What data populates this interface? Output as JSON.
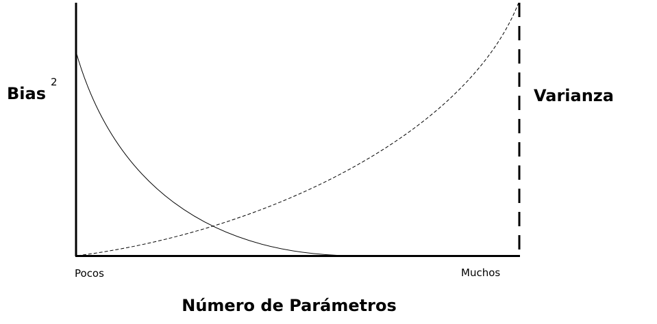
{
  "left_axis": {
    "label": "Bias",
    "superscript": "2"
  },
  "right_axis": {
    "label": "Varianza"
  },
  "x_axis": {
    "title": "Número de Parámetros",
    "start_label": "Pocos",
    "end_label": "Muchos"
  },
  "curves": [
    {
      "name": "bias-squared",
      "style": "solid",
      "trend": "decreasing"
    },
    {
      "name": "variance",
      "style": "dashed",
      "trend": "increasing"
    }
  ],
  "colors": {
    "ink": "#000000",
    "background": "#ffffff"
  }
}
